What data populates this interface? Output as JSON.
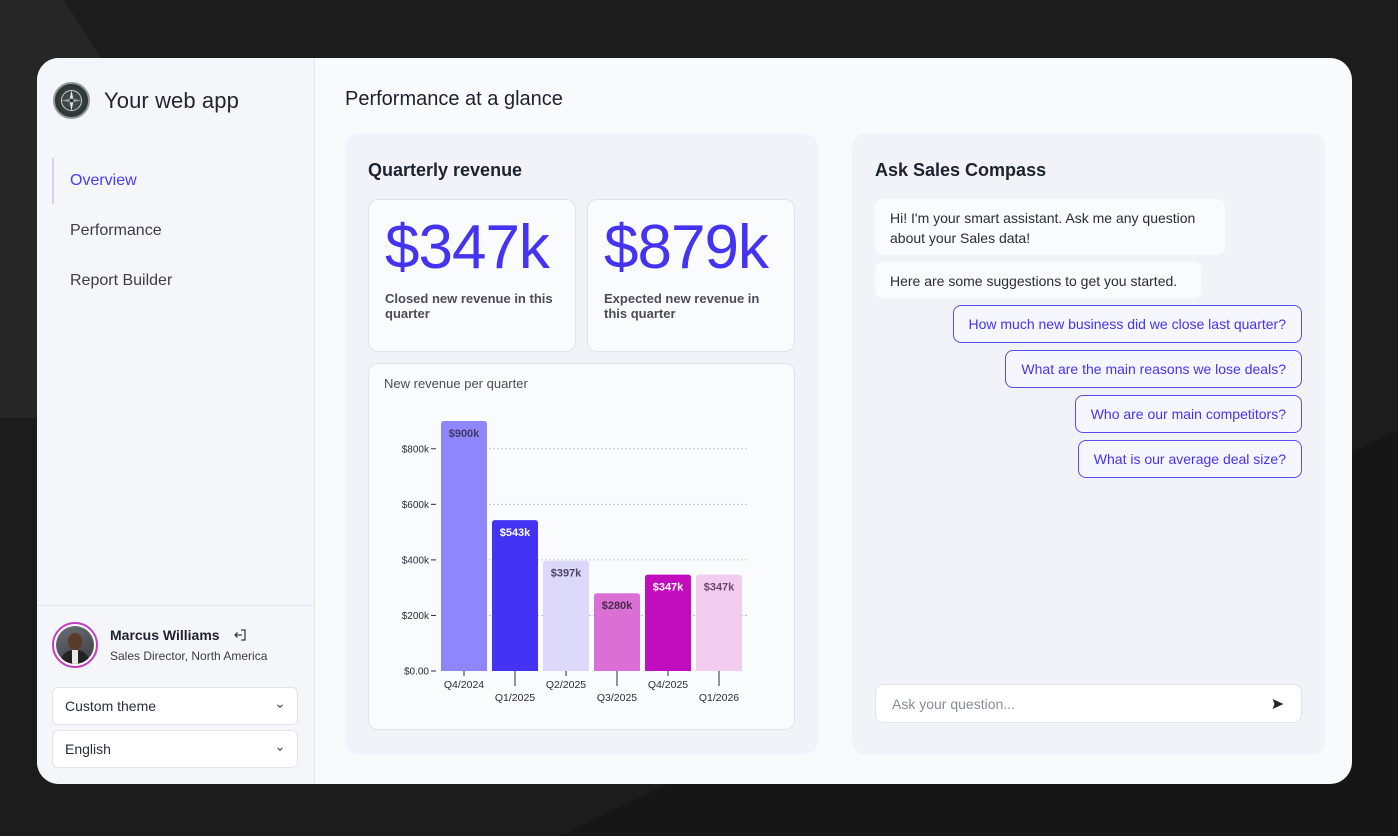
{
  "app": {
    "title": "Your web app"
  },
  "sidebar": {
    "items": [
      {
        "label": "Overview",
        "active": true
      },
      {
        "label": "Performance",
        "active": false
      },
      {
        "label": "Report Builder",
        "active": false
      }
    ]
  },
  "user": {
    "name": "Marcus Williams",
    "role": "Sales Director, North America"
  },
  "selects": {
    "theme": "Custom theme",
    "language": "English"
  },
  "page": {
    "title": "Performance at a glance"
  },
  "revenue": {
    "title": "Quarterly revenue",
    "kpis": [
      {
        "value": "$347k",
        "label": "Closed new revenue in this quarter"
      },
      {
        "value": "$879k",
        "label": "Expected new revenue in this quarter"
      }
    ],
    "chart_title": "New revenue per quarter"
  },
  "chart_data": {
    "type": "bar",
    "title": "New revenue per quarter",
    "categories": [
      "Q4/2024",
      "Q1/2025",
      "Q2/2025",
      "Q3/2025",
      "Q4/2025",
      "Q1/2026"
    ],
    "values": [
      900,
      543,
      397,
      280,
      347,
      347
    ],
    "data_labels": [
      "$900k",
      "$543k",
      "$397k",
      "$280k",
      "$347k",
      "$347k"
    ],
    "colors": [
      "#8f86fb",
      "#4433f2",
      "#dcd8fa",
      "#da6fd6",
      "#c10dbd",
      "#f3cdf0"
    ],
    "label_colors": [
      "#3e3a66",
      "#ffffff",
      "#4a4566",
      "#4a2a48",
      "#ffffff",
      "#6a4a68"
    ],
    "yticks": [
      0,
      200,
      400,
      600,
      800
    ],
    "ytick_labels": [
      "$0.00",
      "$200k",
      "$400k",
      "$600k",
      "$800k"
    ],
    "ylim": [
      0,
      900
    ],
    "grid": true,
    "xlabel": "",
    "ylabel": ""
  },
  "ask": {
    "title": "Ask Sales Compass",
    "messages": [
      "Hi! I'm your smart assistant. Ask me any question about your Sales data!",
      "Here are some suggestions to get you started."
    ],
    "suggestions": [
      "How much new business did we close last quarter?",
      "What are the main reasons we lose deals?",
      "Who are our main competitors?",
      "What is our average deal size?"
    ],
    "input_placeholder": "Ask your question..."
  },
  "icons": {
    "logo": "compass-icon",
    "logout": "logout-icon",
    "chevron": "chevron-down-icon",
    "send": "send-icon"
  },
  "colors": {
    "accent": "#4433f0",
    "magenta": "#c10dbd"
  }
}
